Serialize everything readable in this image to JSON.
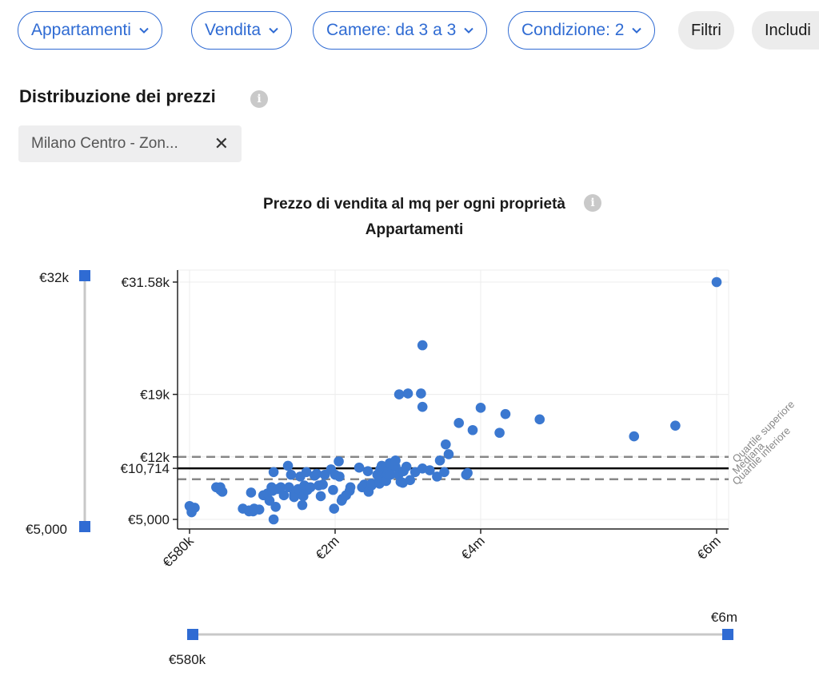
{
  "filters": {
    "property_type": "Appartamenti",
    "contract": "Vendita",
    "rooms": "Camere: da 3 a 3",
    "condition": "Condizione: 2",
    "more_filters": "Filtri",
    "include": "Includi"
  },
  "section": {
    "title": "Distribuzione dei prezzi",
    "area_tag": "Milano Centro - Zon..."
  },
  "chart_header": {
    "title": "Prezzo di vendita al mq per ogni proprietà",
    "subtitle": "Appartamenti"
  },
  "y_slider": {
    "max_label": "€32k",
    "min_label": "€5,000"
  },
  "x_slider": {
    "min_label": "€580k",
    "max_label": "€6m"
  },
  "colors": {
    "accent": "#2f6bd3",
    "points": "#3b78d0",
    "median": "#000000",
    "quartile": "#888888"
  },
  "chart_data": {
    "type": "scatter",
    "title": "Prezzo di vendita al mq per ogni proprietà",
    "subtitle": "Appartamenti",
    "xlabel": "",
    "ylabel": "",
    "xlim": [
      580000,
      6000000
    ],
    "ylim": [
      5000,
      31580
    ],
    "x_ticks": [
      {
        "value": 580000,
        "label": "€580k"
      },
      {
        "value": 2000000,
        "label": "€2m"
      },
      {
        "value": 4000000,
        "label": "€4m"
      },
      {
        "value": 6000000,
        "label": "€6m"
      }
    ],
    "y_ticks": [
      {
        "value": 5000,
        "label": "€5,000"
      },
      {
        "value": 10714,
        "label": "€10,714"
      },
      {
        "value": 12000,
        "label": "€12k"
      },
      {
        "value": 19000,
        "label": "€19k"
      },
      {
        "value": 31580,
        "label": "€31.58k"
      }
    ],
    "reference_lines": [
      {
        "name": "Quartile superiore",
        "value": 12000,
        "style": "dashed"
      },
      {
        "name": "Mediana",
        "value": 10714,
        "style": "solid"
      },
      {
        "name": "Quartile inferiore",
        "value": 9500,
        "style": "dashed"
      }
    ],
    "grid": true,
    "points": [
      [
        580000,
        6500
      ],
      [
        600000,
        6100
      ],
      [
        600000,
        5800
      ],
      [
        630000,
        6300
      ],
      [
        840000,
        8600
      ],
      [
        880000,
        8300
      ],
      [
        880000,
        8600
      ],
      [
        900000,
        8100
      ],
      [
        1100000,
        6200
      ],
      [
        1160000,
        5900
      ],
      [
        1160000,
        6000
      ],
      [
        1180000,
        8000
      ],
      [
        1200000,
        5900
      ],
      [
        1210000,
        6200
      ],
      [
        1260000,
        6100
      ],
      [
        1300000,
        7700
      ],
      [
        1340000,
        7900
      ],
      [
        1360000,
        7100
      ],
      [
        1380000,
        8600
      ],
      [
        1390000,
        8200
      ],
      [
        1400000,
        5000
      ],
      [
        1400000,
        10300
      ],
      [
        1420000,
        6400
      ],
      [
        1440000,
        8400
      ],
      [
        1470000,
        8600
      ],
      [
        1500000,
        7700
      ],
      [
        1540000,
        11000
      ],
      [
        1550000,
        8600
      ],
      [
        1570000,
        10000
      ],
      [
        1600000,
        7500
      ],
      [
        1600000,
        7800
      ],
      [
        1640000,
        8400
      ],
      [
        1660000,
        9800
      ],
      [
        1680000,
        6600
      ],
      [
        1690000,
        7600
      ],
      [
        1700000,
        8800
      ],
      [
        1720000,
        10300
      ],
      [
        1730000,
        8300
      ],
      [
        1760000,
        8600
      ],
      [
        1800000,
        9900
      ],
      [
        1820000,
        10100
      ],
      [
        1840000,
        8800
      ],
      [
        1860000,
        7600
      ],
      [
        1880000,
        8900
      ],
      [
        1900000,
        10000
      ],
      [
        1960000,
        10600
      ],
      [
        1980000,
        8300
      ],
      [
        1990000,
        6200
      ],
      [
        2000000,
        10000
      ],
      [
        2050000,
        11500
      ],
      [
        2060000,
        9800
      ],
      [
        2090000,
        7100
      ],
      [
        2100000,
        7300
      ],
      [
        2150000,
        7700
      ],
      [
        2200000,
        8200
      ],
      [
        2210000,
        8600
      ],
      [
        2330000,
        10800
      ],
      [
        2370000,
        8600
      ],
      [
        2400000,
        8900
      ],
      [
        2450000,
        8800
      ],
      [
        2450000,
        10400
      ],
      [
        2460000,
        8100
      ],
      [
        2500000,
        8800
      ],
      [
        2500000,
        9000
      ],
      [
        2580000,
        10000
      ],
      [
        2600000,
        9400
      ],
      [
        2610000,
        9000
      ],
      [
        2620000,
        10400
      ],
      [
        2620000,
        10600
      ],
      [
        2630000,
        9700
      ],
      [
        2640000,
        11000
      ],
      [
        2650000,
        9900
      ],
      [
        2680000,
        10100
      ],
      [
        2700000,
        9800
      ],
      [
        2700000,
        9300
      ],
      [
        2700000,
        10700
      ],
      [
        2720000,
        10100
      ],
      [
        2730000,
        10500
      ],
      [
        2750000,
        11300
      ],
      [
        2760000,
        10000
      ],
      [
        2830000,
        10900
      ],
      [
        2830000,
        11600
      ],
      [
        2870000,
        10000
      ],
      [
        2880000,
        19000
      ],
      [
        2900000,
        9200
      ],
      [
        2930000,
        9100
      ],
      [
        2940000,
        10400
      ],
      [
        2980000,
        10900
      ],
      [
        3000000,
        19100
      ],
      [
        3030000,
        9400
      ],
      [
        3100000,
        10300
      ],
      [
        3180000,
        19100
      ],
      [
        3200000,
        24500
      ],
      [
        3200000,
        10700
      ],
      [
        3200000,
        17600
      ],
      [
        3300000,
        10500
      ],
      [
        3400000,
        9800
      ],
      [
        3440000,
        11600
      ],
      [
        3500000,
        10300
      ],
      [
        3520000,
        13400
      ],
      [
        3560000,
        12300
      ],
      [
        3700000,
        15800
      ],
      [
        3800000,
        10000
      ],
      [
        3820000,
        10200
      ],
      [
        3890000,
        15000
      ],
      [
        4000000,
        17500
      ],
      [
        4160000,
        14700
      ],
      [
        4210000,
        16800
      ],
      [
        4500000,
        16200
      ],
      [
        5300000,
        14300
      ],
      [
        5650000,
        15500
      ],
      [
        6000000,
        31580
      ]
    ]
  }
}
